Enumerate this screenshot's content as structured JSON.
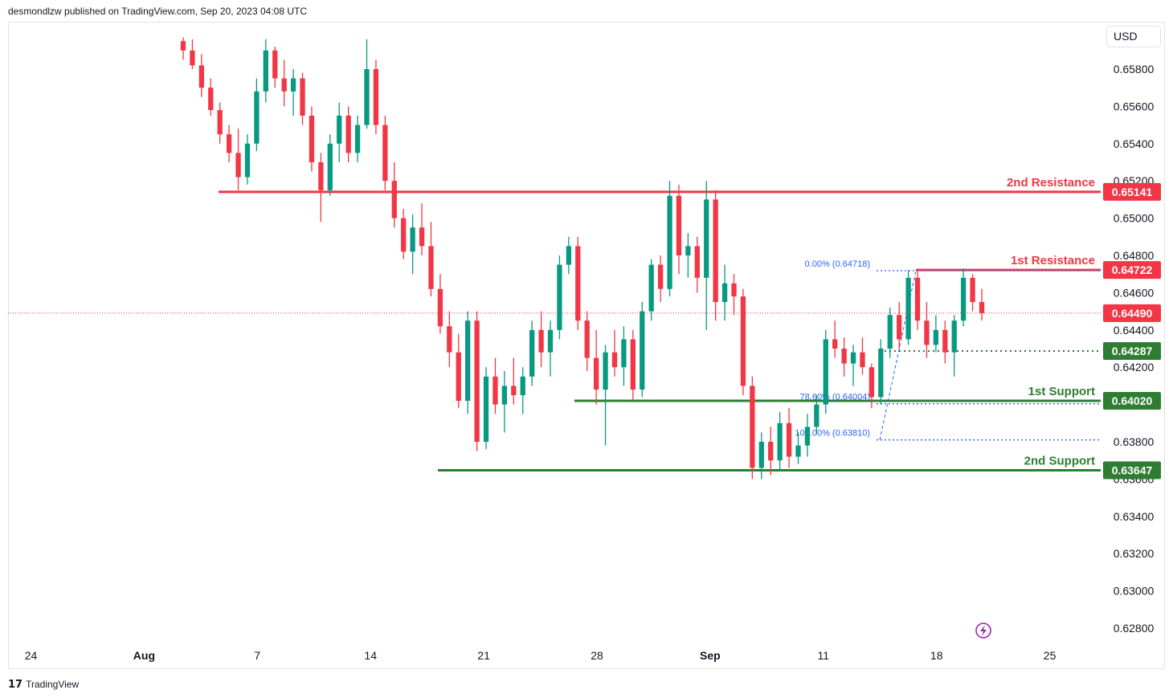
{
  "header": {
    "attribution": "desmondlzw published on TradingView.com, Sep 20, 2023 04:08 UTC"
  },
  "currency_button": {
    "label": "USD"
  },
  "footer": {
    "logo": "17",
    "brand": "TradingView"
  },
  "colors": {
    "up": "#089981",
    "down": "#f23645",
    "resistance": "#f23645",
    "support": "#2e7d32",
    "fib": "#2962ff",
    "price_line": "#f23645",
    "grid_text": "#131722"
  },
  "icons": {
    "bottom_right": "lightning-icon"
  },
  "chart_data": {
    "type": "candlestick",
    "instrument_currency": "USD",
    "ylim": [
      0.627,
      0.6595
    ],
    "y_ticks": [
      "0.65800",
      "0.65600",
      "0.65400",
      "0.65200",
      "0.65000",
      "0.64800",
      "0.64600",
      "0.64400",
      "0.64200",
      "0.63800",
      "0.63600",
      "0.63400",
      "0.63200",
      "0.63000",
      "0.62800"
    ],
    "x_ticks": [
      {
        "label": "24",
        "bold": false
      },
      {
        "label": "Aug",
        "bold": true
      },
      {
        "label": "7",
        "bold": false
      },
      {
        "label": "14",
        "bold": false
      },
      {
        "label": "21",
        "bold": false
      },
      {
        "label": "28",
        "bold": false
      },
      {
        "label": "Sep",
        "bold": true
      },
      {
        "label": "11",
        "bold": false
      },
      {
        "label": "18",
        "bold": false
      },
      {
        "label": "25",
        "bold": false
      }
    ],
    "levels": [
      {
        "name": "2nd Resistance",
        "value": "0.65141",
        "kind": "resistance"
      },
      {
        "name": "1st Resistance",
        "value": "0.64722",
        "kind": "resistance"
      },
      {
        "name": "",
        "value": "0.64287",
        "kind": "support-dotted"
      },
      {
        "name": "1st Support",
        "value": "0.64020",
        "kind": "support"
      },
      {
        "name": "2nd Support",
        "value": "0.63647",
        "kind": "support"
      }
    ],
    "current_price": "0.64490",
    "fibonacci": [
      {
        "label": "0.00% (0.64718)",
        "value": 0.64718
      },
      {
        "label": "78.60% (0.64004)",
        "value": 0.64004
      },
      {
        "label": "100.00% (0.63810)",
        "value": 0.6381
      }
    ],
    "candles": [
      [
        0.6595,
        0.6597,
        0.6585,
        0.659
      ],
      [
        0.659,
        0.6596,
        0.658,
        0.6582
      ],
      [
        0.6582,
        0.6588,
        0.6565,
        0.657
      ],
      [
        0.657,
        0.6575,
        0.6555,
        0.6558
      ],
      [
        0.6558,
        0.6562,
        0.654,
        0.6545
      ],
      [
        0.6545,
        0.655,
        0.653,
        0.6535
      ],
      [
        0.6535,
        0.6548,
        0.6515,
        0.6522
      ],
      [
        0.6522,
        0.6545,
        0.6518,
        0.654
      ],
      [
        0.654,
        0.6575,
        0.6536,
        0.6568
      ],
      [
        0.6568,
        0.6596,
        0.6562,
        0.659
      ],
      [
        0.659,
        0.6592,
        0.657,
        0.6575
      ],
      [
        0.6575,
        0.6585,
        0.656,
        0.6568
      ],
      [
        0.6568,
        0.658,
        0.6555,
        0.6575
      ],
      [
        0.6575,
        0.6578,
        0.655,
        0.6555
      ],
      [
        0.6555,
        0.656,
        0.6525,
        0.653
      ],
      [
        0.653,
        0.6535,
        0.6498,
        0.6515
      ],
      [
        0.6515,
        0.6545,
        0.6512,
        0.654
      ],
      [
        0.654,
        0.6562,
        0.653,
        0.6555
      ],
      [
        0.6555,
        0.656,
        0.653,
        0.6535
      ],
      [
        0.6535,
        0.6555,
        0.653,
        0.655
      ],
      [
        0.655,
        0.6596,
        0.6548,
        0.658
      ],
      [
        0.658,
        0.6585,
        0.6545,
        0.655
      ],
      [
        0.655,
        0.6555,
        0.6515,
        0.652
      ],
      [
        0.652,
        0.653,
        0.6495,
        0.65
      ],
      [
        0.65,
        0.6505,
        0.6478,
        0.6482
      ],
      [
        0.6482,
        0.6502,
        0.647,
        0.6495
      ],
      [
        0.6495,
        0.6508,
        0.648,
        0.6485
      ],
      [
        0.6485,
        0.6498,
        0.6458,
        0.6462
      ],
      [
        0.6462,
        0.647,
        0.6438,
        0.6442
      ],
      [
        0.6442,
        0.645,
        0.642,
        0.6428
      ],
      [
        0.6428,
        0.6438,
        0.6398,
        0.6402
      ],
      [
        0.6402,
        0.645,
        0.6395,
        0.6445
      ],
      [
        0.6445,
        0.645,
        0.6375,
        0.638
      ],
      [
        0.638,
        0.642,
        0.6376,
        0.6415
      ],
      [
        0.6415,
        0.6425,
        0.6395,
        0.64
      ],
      [
        0.64,
        0.6418,
        0.6385,
        0.641
      ],
      [
        0.641,
        0.6425,
        0.64,
        0.6405
      ],
      [
        0.6405,
        0.642,
        0.6395,
        0.6415
      ],
      [
        0.6415,
        0.6445,
        0.641,
        0.644
      ],
      [
        0.644,
        0.645,
        0.642,
        0.6428
      ],
      [
        0.6428,
        0.6445,
        0.6415,
        0.644
      ],
      [
        0.644,
        0.648,
        0.6435,
        0.6475
      ],
      [
        0.6475,
        0.649,
        0.647,
        0.6485
      ],
      [
        0.6485,
        0.649,
        0.644,
        0.6445
      ],
      [
        0.6445,
        0.645,
        0.6418,
        0.6425
      ],
      [
        0.6425,
        0.644,
        0.64,
        0.6408
      ],
      [
        0.6408,
        0.6432,
        0.6378,
        0.6428
      ],
      [
        0.6428,
        0.644,
        0.6415,
        0.642
      ],
      [
        0.642,
        0.6442,
        0.641,
        0.6435
      ],
      [
        0.6435,
        0.644,
        0.6402,
        0.6408
      ],
      [
        0.6408,
        0.6455,
        0.6404,
        0.645
      ],
      [
        0.645,
        0.6478,
        0.6445,
        0.6475
      ],
      [
        0.6475,
        0.648,
        0.6455,
        0.6462
      ],
      [
        0.6462,
        0.652,
        0.6458,
        0.6512
      ],
      [
        0.6512,
        0.6518,
        0.647,
        0.648
      ],
      [
        0.648,
        0.6492,
        0.6468,
        0.6485
      ],
      [
        0.6485,
        0.649,
        0.646,
        0.6468
      ],
      [
        0.6468,
        0.652,
        0.644,
        0.651
      ],
      [
        0.651,
        0.6515,
        0.6445,
        0.6455
      ],
      [
        0.6455,
        0.6475,
        0.6445,
        0.6465
      ],
      [
        0.6465,
        0.647,
        0.6448,
        0.6458
      ],
      [
        0.6458,
        0.6462,
        0.6405,
        0.641
      ],
      [
        0.641,
        0.6415,
        0.636,
        0.6366
      ],
      [
        0.6366,
        0.6385,
        0.636,
        0.638
      ],
      [
        0.638,
        0.6388,
        0.6362,
        0.637
      ],
      [
        0.637,
        0.6396,
        0.6364,
        0.639
      ],
      [
        0.639,
        0.6398,
        0.6366,
        0.6372
      ],
      [
        0.6372,
        0.6385,
        0.6368,
        0.6378
      ],
      [
        0.6378,
        0.6395,
        0.6372,
        0.6388
      ],
      [
        0.6388,
        0.6405,
        0.6384,
        0.64
      ],
      [
        0.64,
        0.644,
        0.6395,
        0.6435
      ],
      [
        0.6435,
        0.6445,
        0.6425,
        0.643
      ],
      [
        0.643,
        0.6436,
        0.6415,
        0.6422
      ],
      [
        0.6422,
        0.6432,
        0.641,
        0.6428
      ],
      [
        0.6428,
        0.6436,
        0.6416,
        0.642
      ],
      [
        0.642,
        0.6422,
        0.6398,
        0.6404
      ],
      [
        0.6404,
        0.6435,
        0.64,
        0.643
      ],
      [
        0.643,
        0.6452,
        0.6425,
        0.6448
      ],
      [
        0.6448,
        0.6455,
        0.643,
        0.6435
      ],
      [
        0.6435,
        0.6472,
        0.6432,
        0.6468
      ],
      [
        0.6468,
        0.6472,
        0.644,
        0.6445
      ],
      [
        0.6445,
        0.6455,
        0.6425,
        0.6432
      ],
      [
        0.6432,
        0.6448,
        0.6428,
        0.644
      ],
      [
        0.644,
        0.6445,
        0.6422,
        0.6428
      ],
      [
        0.6428,
        0.6448,
        0.6415,
        0.6445
      ],
      [
        0.6445,
        0.6473,
        0.6442,
        0.6468
      ],
      [
        0.6468,
        0.647,
        0.645,
        0.6455
      ],
      [
        0.6455,
        0.6462,
        0.6445,
        0.6449
      ]
    ]
  }
}
